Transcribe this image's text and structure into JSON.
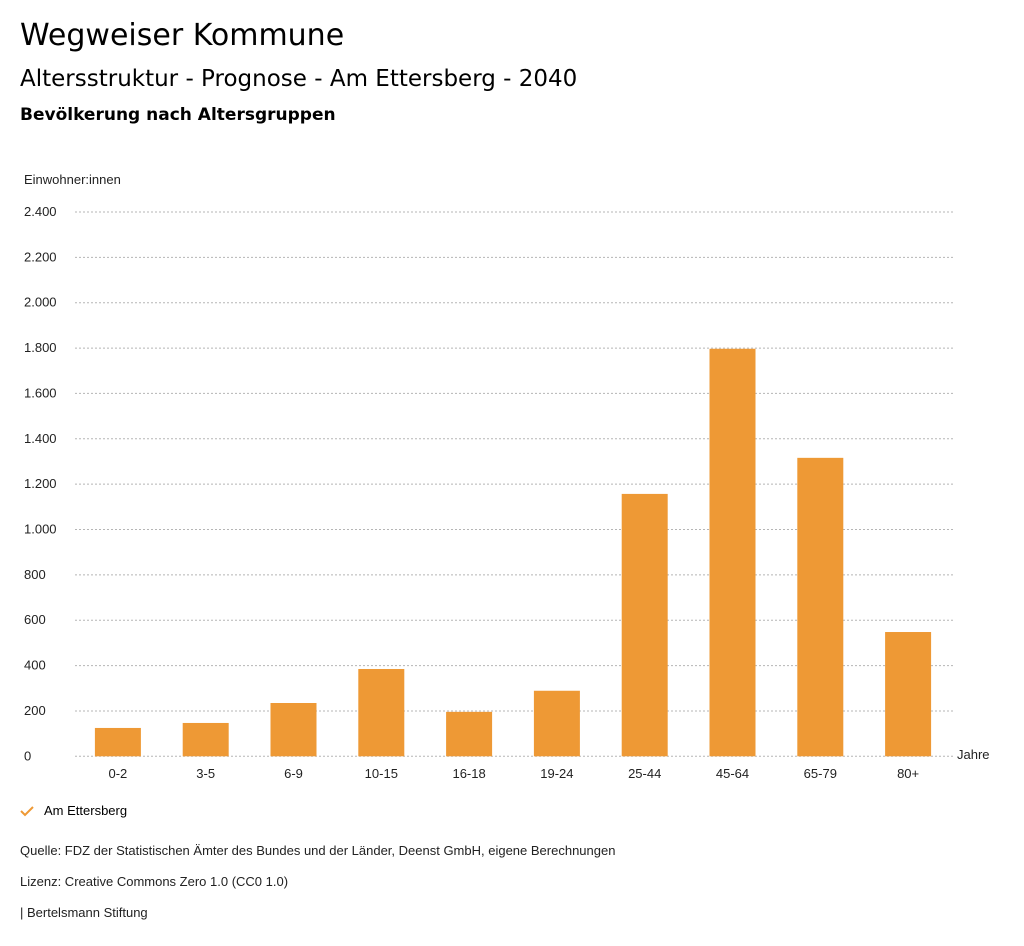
{
  "header": {
    "title": "Wegweiser Kommune",
    "subtitle": "Altersstruktur - Prognose - Am Ettersberg - 2040",
    "chart_heading": "Bevölkerung nach Altersgruppen"
  },
  "chart_data": {
    "type": "bar",
    "title": "Bevölkerung nach Altersgruppen",
    "ylabel": "Einwohner:innen",
    "xlabel": "Jahre",
    "ylim": [
      0,
      2400
    ],
    "yticks": [
      0,
      200,
      400,
      600,
      800,
      1000,
      1200,
      1400,
      1600,
      1800,
      2000,
      2200,
      2400
    ],
    "ytick_labels": [
      "0",
      "200",
      "400",
      "600",
      "800",
      "1.000",
      "1.200",
      "1.400",
      "1.600",
      "1.800",
      "2.000",
      "2.200",
      "2.400"
    ],
    "categories": [
      "0-2",
      "3-5",
      "6-9",
      "10-15",
      "16-18",
      "19-24",
      "25-44",
      "45-64",
      "65-79",
      "80+"
    ],
    "series": [
      {
        "name": "Am Ettersberg",
        "color": "#ee9935",
        "values": [
          125,
          147,
          235,
          385,
          196,
          289,
          1157,
          1797,
          1316,
          548
        ]
      }
    ],
    "grid": true,
    "legend_position": "bottom-left"
  },
  "legend": {
    "label": "Am Ettersberg",
    "icon": "check-icon"
  },
  "footer": {
    "source": "Quelle: FDZ der Statistischen Ämter des Bundes und der Länder, Deenst GmbH, eigene Berechnungen",
    "license": "Lizenz: Creative Commons Zero 1.0 (CC0 1.0)",
    "publisher": "| Bertelsmann Stiftung"
  }
}
